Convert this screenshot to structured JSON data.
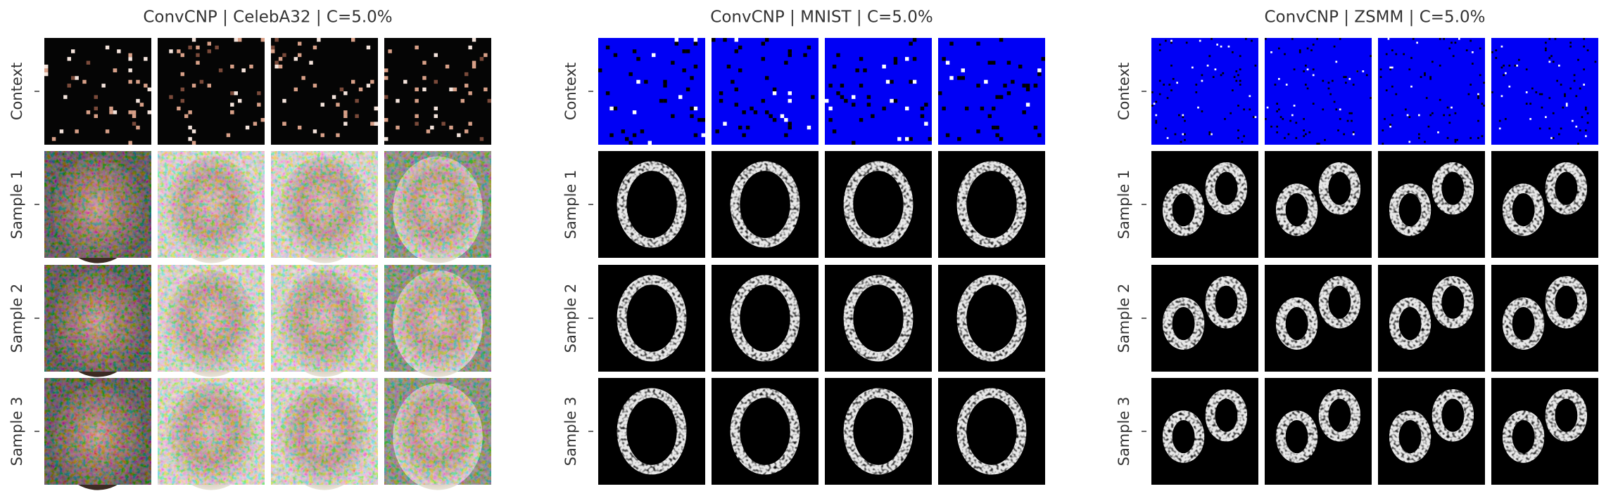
{
  "panels": [
    {
      "title": "ConvCNP | CelebA32 | C=5.0%",
      "row_labels": [
        "Context",
        "Sample 1",
        "Sample 2",
        "Sample 3"
      ]
    },
    {
      "title": "ConvCNP | MNIST | C=5.0%",
      "row_labels": [
        "Context",
        "Sample 1",
        "Sample 2",
        "Sample 3"
      ]
    },
    {
      "title": "ConvCNP | ZSMM | C=5.0%",
      "row_labels": [
        "Context",
        "Sample 1",
        "Sample 2",
        "Sample 3"
      ]
    }
  ]
}
